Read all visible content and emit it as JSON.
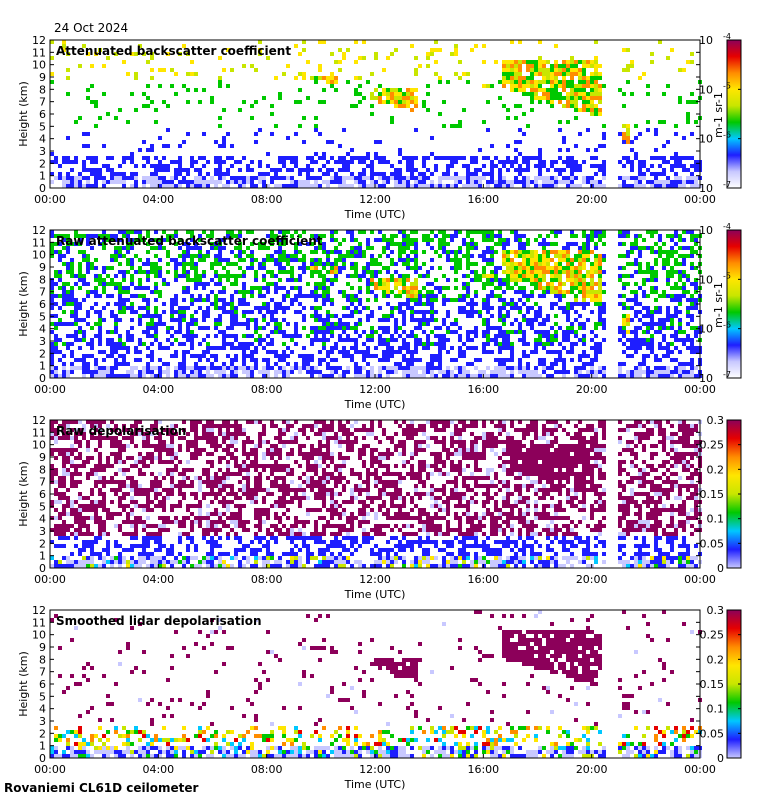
{
  "date": "24 Oct 2024",
  "footer": "Rovaniemi CL61D ceilometer",
  "colors": {
    "background": "#ffffff",
    "colormap": [
      "#ffffff",
      "#c8c8ff",
      "#1e1eff",
      "#00c8ff",
      "#00c800",
      "#c8e600",
      "#ffe600",
      "#ff8c00",
      "#e60000",
      "#8c005a"
    ]
  },
  "chart_data": [
    {
      "type": "heatmap",
      "title": "Attenuated backscatter coefficient",
      "xlabel": "Time (UTC)",
      "ylabel": "Height (km)",
      "xticks": [
        "00:00",
        "04:00",
        "08:00",
        "12:00",
        "16:00",
        "20:00",
        "00:00"
      ],
      "yticks": [
        "0",
        "1",
        "2",
        "3",
        "4",
        "5",
        "6",
        "7",
        "8",
        "9",
        "10",
        "11",
        "12"
      ],
      "ylim": [
        0,
        12
      ],
      "xlim_hours": [
        0,
        24
      ],
      "colorbar": {
        "scale": "log",
        "ticks": [
          "10-7",
          "10-6",
          "10-5",
          "10-4"
        ],
        "tick_base": "10",
        "tick_exps": [
          "-7",
          "-6",
          "-5",
          "-4"
        ],
        "label": "m-1 sr-1"
      },
      "data_gap_hours": [
        20.5,
        20.95
      ],
      "clouds_km": [
        {
          "t0": 9.5,
          "t1": 10.5,
          "h0": 8.6,
          "h1": 9.2
        },
        {
          "t0": 11.8,
          "t1": 13.5,
          "h0": 6.2,
          "h1": 8.2
        },
        {
          "t0": 15.9,
          "t1": 16.3,
          "h0": 8.0,
          "h1": 8.6
        },
        {
          "t0": 16.6,
          "t1": 20.3,
          "h0": 5.6,
          "h1": 10.5
        },
        {
          "t0": 21.1,
          "t1": 21.4,
          "h0": 2.4,
          "h1": 5.5
        }
      ]
    },
    {
      "type": "heatmap",
      "title": "Raw attenuated backscatter coefficient",
      "xlabel": "Time (UTC)",
      "ylabel": "Height (km)",
      "xticks": [
        "00:00",
        "04:00",
        "08:00",
        "12:00",
        "16:00",
        "20:00",
        "00:00"
      ],
      "yticks": [
        "0",
        "1",
        "2",
        "3",
        "4",
        "5",
        "6",
        "7",
        "8",
        "9",
        "10",
        "11",
        "12"
      ],
      "ylim": [
        0,
        12
      ],
      "xlim_hours": [
        0,
        24
      ],
      "colorbar": {
        "scale": "log",
        "ticks": [
          "10-7",
          "10-6",
          "10-5",
          "10-4"
        ],
        "tick_base": "10",
        "tick_exps": [
          "-7",
          "-6",
          "-5",
          "-4"
        ],
        "label": "m-1 sr-1"
      },
      "data_gap_hours": [
        20.5,
        20.95
      ],
      "clouds_km": [
        {
          "t0": 9.5,
          "t1": 10.5,
          "h0": 8.6,
          "h1": 9.2
        },
        {
          "t0": 11.8,
          "t1": 13.5,
          "h0": 6.2,
          "h1": 8.2
        },
        {
          "t0": 15.9,
          "t1": 16.3,
          "h0": 8.0,
          "h1": 8.6
        },
        {
          "t0": 16.6,
          "t1": 20.3,
          "h0": 5.6,
          "h1": 10.5
        },
        {
          "t0": 21.1,
          "t1": 21.4,
          "h0": 2.4,
          "h1": 5.5
        }
      ]
    },
    {
      "type": "heatmap",
      "title": "Raw depolarisation",
      "xlabel": "Time (UTC)",
      "ylabel": "Height (km)",
      "xticks": [
        "00:00",
        "04:00",
        "08:00",
        "12:00",
        "16:00",
        "20:00",
        "00:00"
      ],
      "yticks": [
        "0",
        "1",
        "2",
        "3",
        "4",
        "5",
        "6",
        "7",
        "8",
        "9",
        "10",
        "11",
        "12"
      ],
      "ylim": [
        0,
        12
      ],
      "xlim_hours": [
        0,
        24
      ],
      "colorbar": {
        "scale": "linear",
        "ticks": [
          "0",
          "0.05",
          "0.1",
          "0.15",
          "0.2",
          "0.25",
          "0.3"
        ],
        "range": [
          0,
          0.3
        ]
      },
      "data_gap_hours": [
        20.5,
        20.95
      ],
      "clouds_km": [
        {
          "t0": 16.8,
          "t1": 20.0,
          "h0": 5.8,
          "h1": 10.2
        },
        {
          "t0": 21.1,
          "t1": 21.4,
          "h0": 2.4,
          "h1": 5.5
        }
      ]
    },
    {
      "type": "heatmap",
      "title": "Smoothed lidar depolarisation",
      "xlabel": "Time (UTC)",
      "ylabel": "Height (km)",
      "xticks": [
        "00:00",
        "04:00",
        "08:00",
        "12:00",
        "16:00",
        "20:00",
        "00:00"
      ],
      "yticks": [
        "0",
        "1",
        "2",
        "3",
        "4",
        "5",
        "6",
        "7",
        "8",
        "9",
        "10",
        "11",
        "12"
      ],
      "ylim": [
        0,
        12
      ],
      "xlim_hours": [
        0,
        24
      ],
      "colorbar": {
        "scale": "linear",
        "ticks": [
          "0",
          "0.05",
          "0.1",
          "0.15",
          "0.2",
          "0.25",
          "0.3"
        ],
        "range": [
          0,
          0.3
        ]
      },
      "data_gap_hours": [
        20.5,
        20.95
      ],
      "clouds_km": [
        {
          "t0": 9.5,
          "t1": 10.5,
          "h0": 8.6,
          "h1": 9.2
        },
        {
          "t0": 11.8,
          "t1": 13.5,
          "h0": 6.2,
          "h1": 8.2
        },
        {
          "t0": 15.9,
          "t1": 16.3,
          "h0": 8.0,
          "h1": 8.6
        },
        {
          "t0": 16.6,
          "t1": 20.3,
          "h0": 5.6,
          "h1": 10.5
        },
        {
          "t0": 21.1,
          "t1": 21.4,
          "h0": 2.4,
          "h1": 5.5
        }
      ]
    }
  ]
}
